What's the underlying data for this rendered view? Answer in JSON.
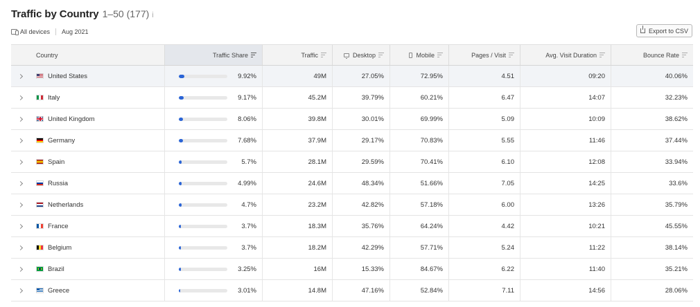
{
  "header": {
    "title": "Traffic by Country",
    "range": "1–50 (177)",
    "info": "i"
  },
  "filters": {
    "device": "All devices",
    "date": "Aug 2021"
  },
  "export_label": "Export to CSV",
  "columns": {
    "country": "Country",
    "share": "Traffic Share",
    "traffic": "Traffic",
    "desktop": "Desktop",
    "mobile": "Mobile",
    "pages": "Pages / Visit",
    "duration": "Avg. Visit Duration",
    "bounce": "Bounce Rate"
  },
  "rows": [
    {
      "country": "United States",
      "share": "9.92%",
      "share_frac": 0.0992,
      "traffic": "49M",
      "desktop": "27.05%",
      "mobile": "72.95%",
      "pages": "4.51",
      "duration": "09:20",
      "bounce": "40.06%",
      "flag": "us"
    },
    {
      "country": "Italy",
      "share": "9.17%",
      "share_frac": 0.0917,
      "traffic": "45.2M",
      "desktop": "39.79%",
      "mobile": "60.21%",
      "pages": "6.47",
      "duration": "14:07",
      "bounce": "32.23%",
      "flag": "it"
    },
    {
      "country": "United Kingdom",
      "share": "8.06%",
      "share_frac": 0.0806,
      "traffic": "39.8M",
      "desktop": "30.01%",
      "mobile": "69.99%",
      "pages": "5.09",
      "duration": "10:09",
      "bounce": "38.62%",
      "flag": "gb"
    },
    {
      "country": "Germany",
      "share": "7.68%",
      "share_frac": 0.0768,
      "traffic": "37.9M",
      "desktop": "29.17%",
      "mobile": "70.83%",
      "pages": "5.55",
      "duration": "11:46",
      "bounce": "37.44%",
      "flag": "de"
    },
    {
      "country": "Spain",
      "share": "5.7%",
      "share_frac": 0.057,
      "traffic": "28.1M",
      "desktop": "29.59%",
      "mobile": "70.41%",
      "pages": "6.10",
      "duration": "12:08",
      "bounce": "33.94%",
      "flag": "es"
    },
    {
      "country": "Russia",
      "share": "4.99%",
      "share_frac": 0.0499,
      "traffic": "24.6M",
      "desktop": "48.34%",
      "mobile": "51.66%",
      "pages": "7.05",
      "duration": "14:25",
      "bounce": "33.6%",
      "flag": "ru"
    },
    {
      "country": "Netherlands",
      "share": "4.7%",
      "share_frac": 0.047,
      "traffic": "23.2M",
      "desktop": "42.82%",
      "mobile": "57.18%",
      "pages": "6.00",
      "duration": "13:26",
      "bounce": "35.79%",
      "flag": "nl"
    },
    {
      "country": "France",
      "share": "3.7%",
      "share_frac": 0.037,
      "traffic": "18.3M",
      "desktop": "35.76%",
      "mobile": "64.24%",
      "pages": "4.42",
      "duration": "10:21",
      "bounce": "45.55%",
      "flag": "fr"
    },
    {
      "country": "Belgium",
      "share": "3.7%",
      "share_frac": 0.037,
      "traffic": "18.2M",
      "desktop": "42.29%",
      "mobile": "57.71%",
      "pages": "5.24",
      "duration": "11:22",
      "bounce": "38.14%",
      "flag": "be"
    },
    {
      "country": "Brazil",
      "share": "3.25%",
      "share_frac": 0.0325,
      "traffic": "16M",
      "desktop": "15.33%",
      "mobile": "84.67%",
      "pages": "6.22",
      "duration": "11:40",
      "bounce": "35.21%",
      "flag": "br"
    },
    {
      "country": "Greece",
      "share": "3.01%",
      "share_frac": 0.0301,
      "traffic": "14.8M",
      "desktop": "47.16%",
      "mobile": "52.84%",
      "pages": "7.11",
      "duration": "14:56",
      "bounce": "28.06%",
      "flag": "gr"
    }
  ],
  "colors": {
    "bar_fill": "#2a64d6",
    "bar_track": "#e8e8e8",
    "header_bg": "#f3f3f3"
  }
}
